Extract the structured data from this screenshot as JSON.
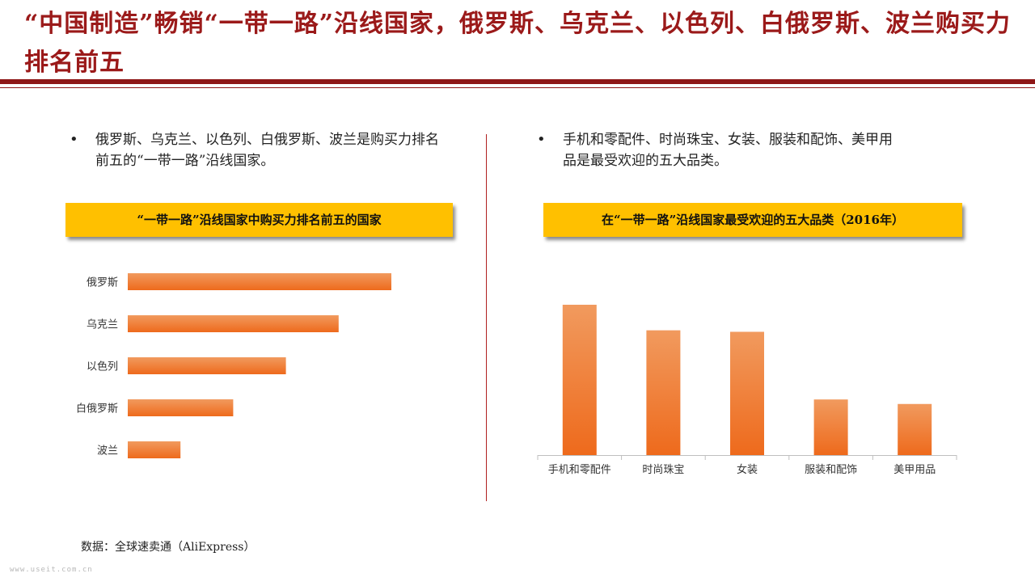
{
  "title": "“中国制造”畅销“一带一路”沿线国家，俄罗斯、乌克兰、以色列、白俄罗斯、波兰购买力排名前五",
  "left": {
    "bullet": "俄罗斯、乌克兰、以色列、白俄罗斯、波兰是购买力排名前五的“一带一路”沿线国家。",
    "banner": "“一带一路”沿线国家中购买力排名前五的国家"
  },
  "right": {
    "bullet": "手机和零配件、时尚珠宝、女装、服装和配饰、美甲用品是最受欢迎的五大品类。",
    "banner": "在“一带一路”沿线国家最受欢迎的五大品类（2016年）"
  },
  "source": "数据：全球速卖通（AliExpress）",
  "watermark": "www.useit.com.cn",
  "colors": {
    "title": "#9b1a1a",
    "rule": "#8e1616",
    "banner": "#ffc000",
    "bar_light": "#f19a5e",
    "bar_dark": "#ee6a1c"
  },
  "chart_data": [
    {
      "type": "bar",
      "orientation": "horizontal",
      "categories": [
        "俄罗斯",
        "乌克兰",
        "以色列",
        "白俄罗斯",
        "波兰"
      ],
      "values": [
        5,
        4,
        3,
        2,
        1
      ],
      "axis_labels_shown": false,
      "grid": false
    },
    {
      "type": "bar",
      "orientation": "vertical",
      "categories": [
        "手机和零配件",
        "时尚珠宝",
        "女装",
        "服装和配饰",
        "美甲用品"
      ],
      "values": [
        100,
        83,
        82,
        37,
        34
      ],
      "axis_labels_shown": false,
      "grid": false
    }
  ]
}
